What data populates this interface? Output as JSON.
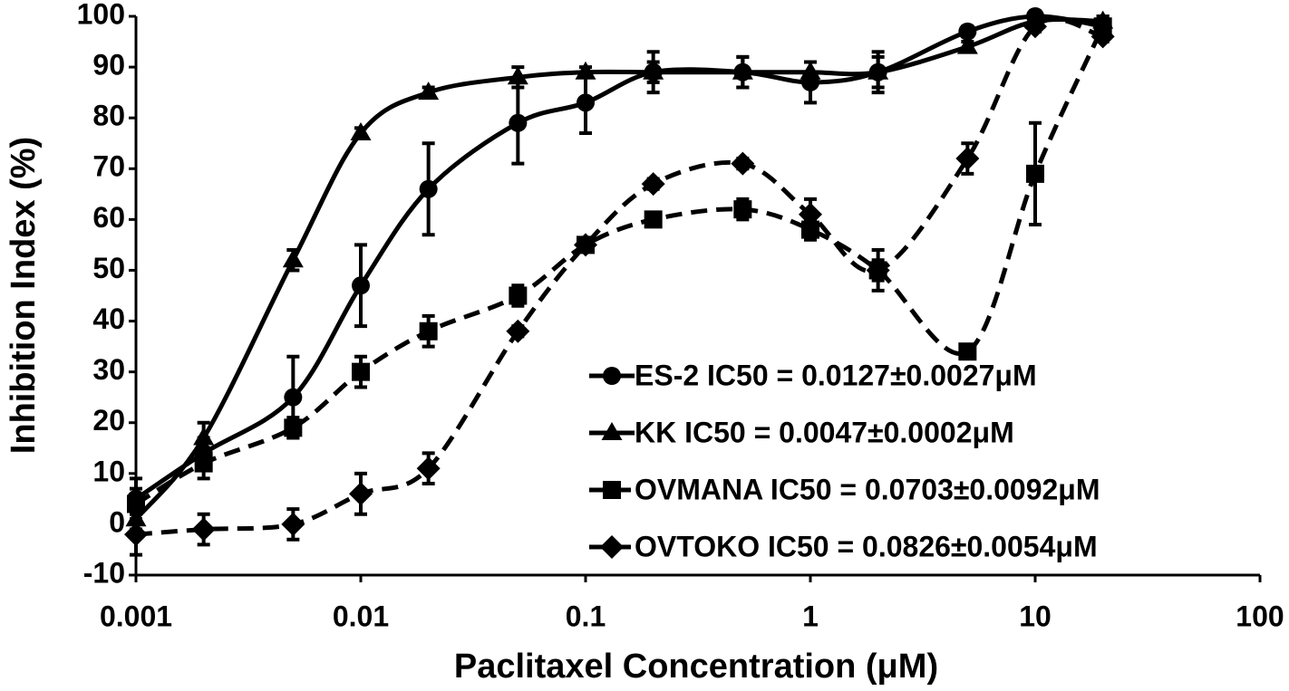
{
  "chart_data": {
    "type": "line",
    "xlabel": "Paclitaxel Concentration (μM)",
    "ylabel": "Inhibition Index (%)",
    "x": [
      0.001,
      0.002,
      0.005,
      0.01,
      0.02,
      0.05,
      0.1,
      0.2,
      0.5,
      1,
      2,
      5,
      10,
      20
    ],
    "xlim": [
      0.001,
      100
    ],
    "xticks": [
      0.001,
      0.01,
      0.1,
      1,
      10,
      100
    ],
    "xscale": "log",
    "ylim": [
      -10,
      100
    ],
    "yticks": [
      -10,
      0,
      10,
      20,
      30,
      40,
      50,
      60,
      70,
      80,
      90,
      100
    ],
    "grid": false,
    "legend": "lower right",
    "smooth": true,
    "series": [
      {
        "name": "ES-2 IC50 = 0.0127±0.0027μM",
        "color": "#000000",
        "marker": "circle",
        "line_style": "solid",
        "values": [
          5,
          14,
          25,
          47,
          66,
          79,
          83,
          89,
          89,
          87,
          89,
          97,
          100,
          98
        ],
        "errors": [
          4,
          3,
          8,
          8,
          9,
          8,
          6,
          4,
          3,
          4,
          4,
          1,
          1,
          1
        ]
      },
      {
        "name": "KK IC50 = 0.0047±0.0002μM",
        "color": "#000000",
        "marker": "triangle",
        "line_style": "solid",
        "values": [
          1,
          17,
          52,
          77,
          85,
          88,
          89,
          89,
          89,
          89,
          89,
          94,
          99,
          99
        ],
        "errors": [
          2,
          3,
          2,
          1,
          1,
          2,
          1,
          2,
          3,
          2,
          3,
          1,
          1,
          1
        ]
      },
      {
        "name": "OVMANA IC50 = 0.0703±0.0092μM",
        "color": "#000000",
        "marker": "square",
        "line_style": "dashed",
        "values": [
          4,
          12,
          19,
          30,
          38,
          45,
          55,
          60,
          62,
          58,
          50,
          34,
          69,
          98
        ],
        "errors": [
          3,
          3,
          2,
          3,
          3,
          2,
          1,
          1,
          2,
          2,
          2,
          1,
          10,
          2
        ]
      },
      {
        "name": "OVTOKO IC50 = 0.0826±0.0054μM",
        "color": "#000000",
        "marker": "diamond",
        "line_style": "dashed",
        "values": [
          -2,
          -1,
          0,
          6,
          11,
          38,
          55,
          67,
          71,
          61,
          50,
          72,
          98,
          96
        ],
        "errors": [
          4,
          3,
          3,
          4,
          3,
          1,
          1,
          1,
          1,
          3,
          4,
          3,
          1,
          1
        ]
      }
    ]
  }
}
